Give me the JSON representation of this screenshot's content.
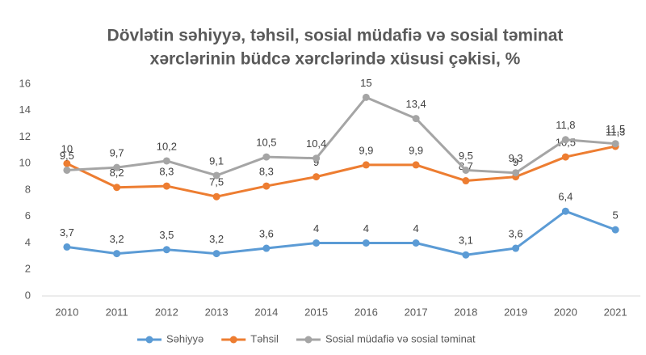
{
  "chart_data": {
    "type": "line",
    "title": [
      "Dövlətin səhiyyə, təhsil, sosial müdafiə və sosial təminat",
      "xərclərinin büdcə xərclərində xüsusi çəkisi, %"
    ],
    "categories": [
      "2010",
      "2011",
      "2012",
      "2013",
      "2014",
      "2015",
      "2016",
      "2017",
      "2018",
      "2019",
      "2020",
      "2021"
    ],
    "series": [
      {
        "name": "Səhiyyə",
        "color": "#5b9bd5",
        "values": [
          3.7,
          3.2,
          3.5,
          3.2,
          3.6,
          4,
          4,
          4,
          3.1,
          3.6,
          6.4,
          5
        ],
        "value_labels": [
          "3,7",
          "3,2",
          "3,5",
          "3,2",
          "3,6",
          "4",
          "4",
          "4",
          "3,1",
          "3,6",
          "6,4",
          "5"
        ]
      },
      {
        "name": "Təhsil",
        "color": "#ed7d31",
        "values": [
          10,
          8.2,
          8.3,
          7.5,
          8.3,
          9,
          9.9,
          9.9,
          8.7,
          9,
          10.5,
          11.3
        ],
        "value_labels": [
          "10",
          "8,2",
          "8,3",
          "7,5",
          "8,3",
          "9",
          "9,9",
          "9,9",
          "8,7",
          "9",
          "10,5",
          "11,3"
        ]
      },
      {
        "name": "Sosial müdafiə və sosial təminat",
        "color": "#a5a5a5",
        "values": [
          9.5,
          9.7,
          10.2,
          9.1,
          10.5,
          10.4,
          15,
          13.4,
          9.5,
          9.3,
          11.8,
          11.5
        ],
        "value_labels": [
          "9,5",
          "9,7",
          "10,2",
          "9,1",
          "10,5",
          "10,4",
          "15",
          "13,4",
          "9,5",
          "9,3",
          "11,8",
          "11,5"
        ]
      }
    ],
    "ylim": [
      0,
      16
    ],
    "yticks": [
      0,
      2,
      4,
      6,
      8,
      10,
      12,
      14,
      16
    ],
    "grid": false,
    "legend": "bottom"
  }
}
